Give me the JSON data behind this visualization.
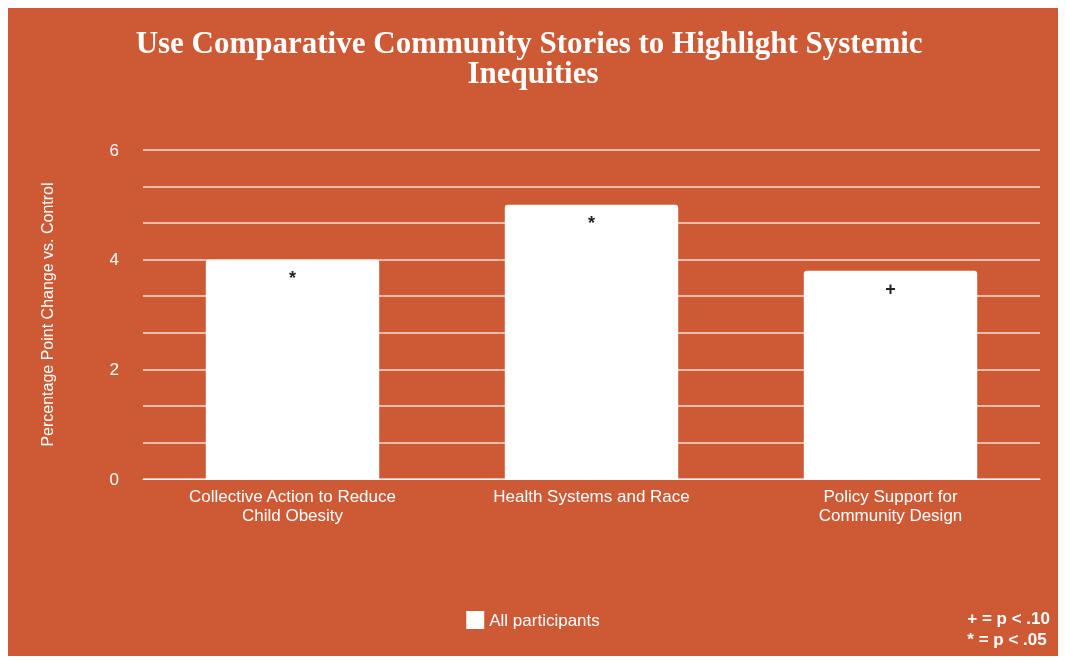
{
  "chart_data": {
    "type": "bar",
    "title": "Use Comparative Community Stories to Highlight Systemic Inequities",
    "ylabel": "Percentage Point Change vs. Control",
    "categories": [
      "Collective Action to Reduce\nChild Obesity",
      "Health Systems and Race",
      "Policy Support for\nCommunity Design"
    ],
    "series": [
      {
        "name": "All participants",
        "color": "#ffffff",
        "values": [
          4.0,
          5.0,
          3.8
        ]
      }
    ],
    "ylim": [
      0,
      6
    ],
    "yticks": [
      0,
      {
        "value": 0.667,
        "label": null
      },
      {
        "value": 1.333,
        "label": null
      },
      2,
      {
        "value": 2.667,
        "label": null
      },
      {
        "value": 3.333,
        "label": null
      },
      4,
      {
        "value": 4.667,
        "label": null
      },
      {
        "value": 5.333,
        "label": null
      },
      6
    ],
    "grid": "y",
    "legend": "bottom",
    "annotations": [
      {
        "text": "*",
        "x": "Collective Action to Reduce\nChild Obesity",
        "y": 4.0
      },
      {
        "text": "*",
        "x": "Health Systems and Race",
        "y": 5.0
      },
      {
        "text": "+",
        "x": "Policy Support for\nCommunity Design",
        "y": 3.8
      },
      "+ = p < .10\n* = p < .05"
    ]
  }
}
